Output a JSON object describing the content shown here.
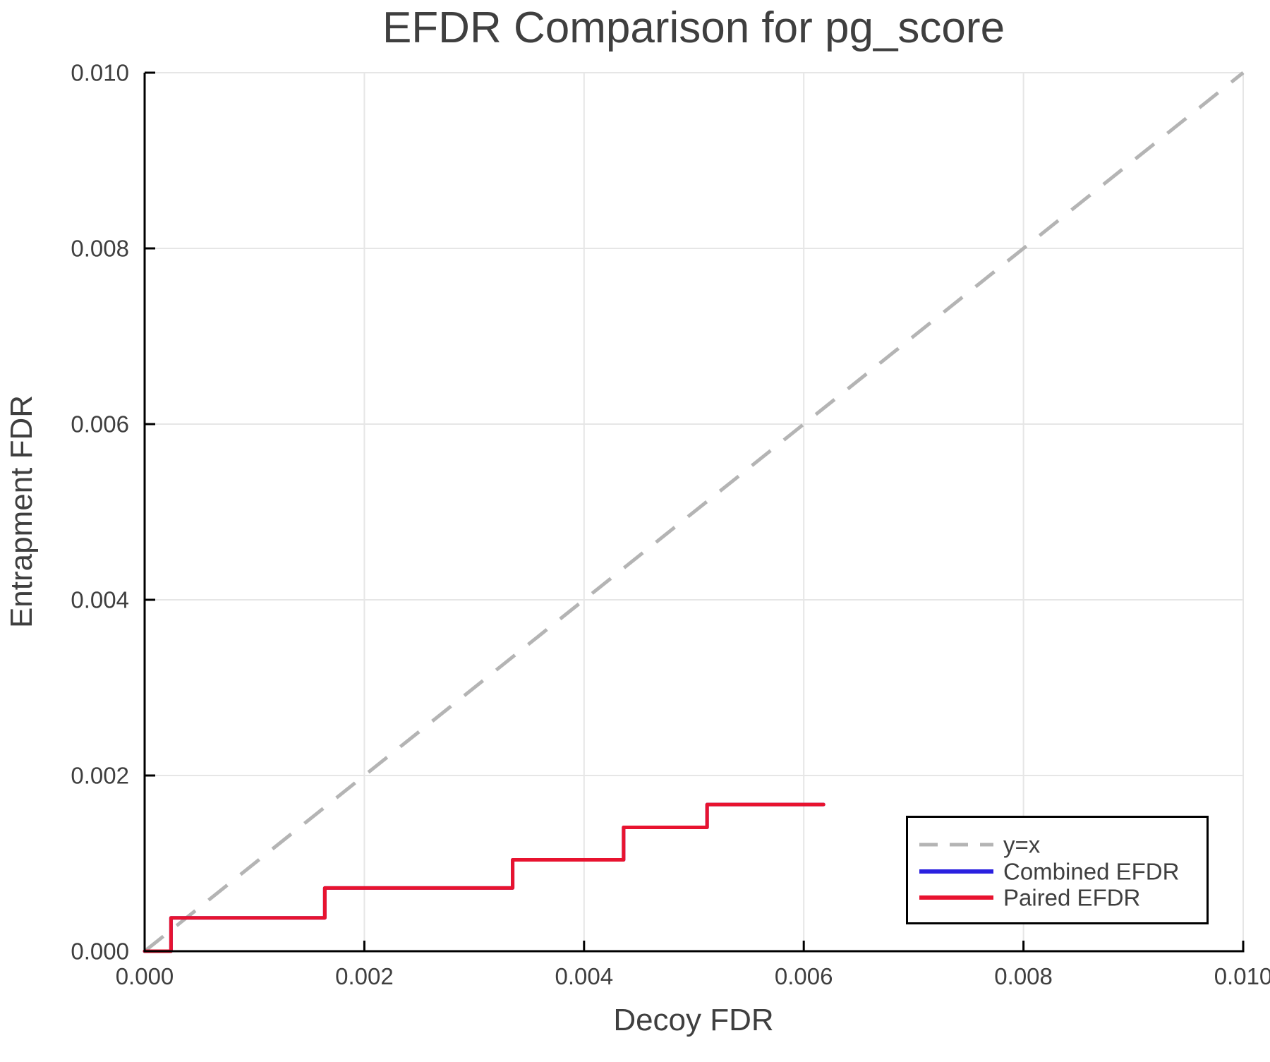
{
  "chart_data": {
    "type": "line",
    "subtype": "step",
    "title": "EFDR Comparison for pg_score",
    "xlabel": "Decoy FDR",
    "ylabel": "Entrapment FDR",
    "xlim": [
      0.0,
      0.01
    ],
    "ylim": [
      0.0,
      0.01
    ],
    "grid": true,
    "x_ticks": {
      "values": [
        0.0,
        0.002,
        0.004,
        0.006,
        0.008,
        0.01
      ],
      "labels": [
        "0.000",
        "0.002",
        "0.004",
        "0.006",
        "0.008",
        "0.010"
      ]
    },
    "y_ticks": {
      "values": [
        0.0,
        0.002,
        0.004,
        0.006,
        0.008,
        0.01
      ],
      "labels": [
        "0.000",
        "0.002",
        "0.004",
        "0.006",
        "0.008",
        "0.010"
      ]
    },
    "reference_line": {
      "label": "y=x",
      "from": [
        0.0,
        0.0
      ],
      "to": [
        0.01,
        0.01
      ],
      "style": "dashed",
      "color": "#b4b4b4"
    },
    "series": [
      {
        "name": "Combined EFDR",
        "color": "#2a20e0",
        "style": "solid",
        "points": [
          [
            0.0,
            0.0
          ],
          [
            0.00024,
            0.0
          ],
          [
            0.00024,
            0.00038
          ],
          [
            0.00164,
            0.00038
          ],
          [
            0.00164,
            0.00072
          ],
          [
            0.00335,
            0.00072
          ],
          [
            0.00335,
            0.00104
          ],
          [
            0.00436,
            0.00104
          ],
          [
            0.00436,
            0.00141
          ],
          [
            0.00512,
            0.00141
          ],
          [
            0.00512,
            0.00167
          ],
          [
            0.00618,
            0.00167
          ]
        ]
      },
      {
        "name": "Paired EFDR",
        "color": "#e8132f",
        "style": "solid",
        "points": [
          [
            0.0,
            0.0
          ],
          [
            0.00024,
            0.0
          ],
          [
            0.00024,
            0.00038
          ],
          [
            0.00164,
            0.00038
          ],
          [
            0.00164,
            0.00072
          ],
          [
            0.00335,
            0.00072
          ],
          [
            0.00335,
            0.00104
          ],
          [
            0.00436,
            0.00104
          ],
          [
            0.00436,
            0.00141
          ],
          [
            0.00512,
            0.00141
          ],
          [
            0.00512,
            0.00167
          ],
          [
            0.00618,
            0.00167
          ]
        ]
      }
    ],
    "legend": {
      "position": "bottom-right",
      "entries": [
        {
          "label": "y=x"
        },
        {
          "label": "Combined EFDR"
        },
        {
          "label": "Paired EFDR"
        }
      ]
    }
  },
  "colors": {
    "grid": "#e6e6e6",
    "spine": "#000000",
    "text": "#3f3f3f",
    "legend_border": "#000000",
    "legend_background": "#ffffff"
  }
}
